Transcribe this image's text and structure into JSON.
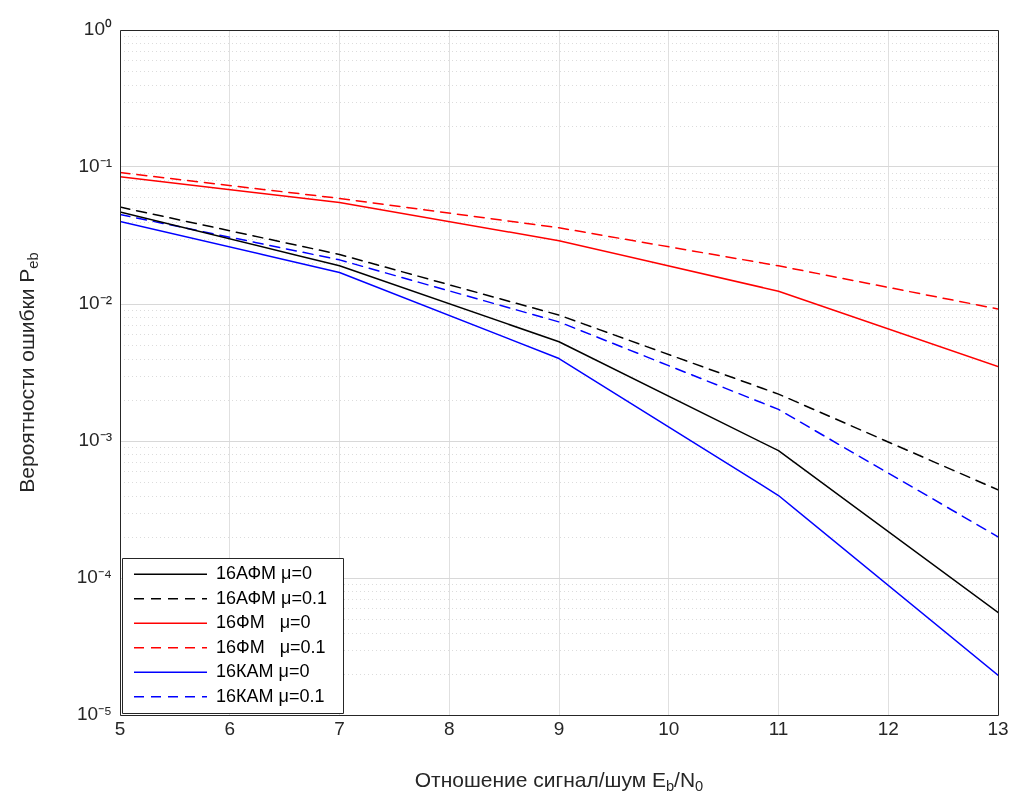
{
  "chart_data": {
    "type": "line",
    "xlabel": "Отношение сигнал/шум E$_{b}$/N$_{0}$",
    "ylabel": "Вероятности ошибки P$_{eb}$",
    "x": [
      5,
      7,
      9,
      11,
      13
    ],
    "series": [
      {
        "name": "16АФМ μ=0",
        "color": "#000000",
        "line_style": "solid",
        "values": [
          0.047,
          0.019,
          0.0053,
          0.00085,
          5.6e-05
        ]
      },
      {
        "name": "16АФМ μ=0.1",
        "color": "#000000",
        "line_style": "dashed",
        "values": [
          0.051,
          0.023,
          0.0083,
          0.0022,
          0.00044
        ]
      },
      {
        "name": "16ФМ   μ=0",
        "color": "#ff0000",
        "line_style": "solid",
        "values": [
          0.085,
          0.055,
          0.029,
          0.0124,
          0.0035
        ]
      },
      {
        "name": "16ФМ   μ=0.1",
        "color": "#ff0000",
        "line_style": "dashed",
        "values": [
          0.091,
          0.059,
          0.036,
          0.019,
          0.0092
        ]
      },
      {
        "name": "16КАМ μ=0",
        "color": "#0000ff",
        "line_style": "solid",
        "values": [
          0.04,
          0.017,
          0.004,
          0.0004,
          1.95e-05
        ]
      },
      {
        "name": "16КАМ μ=0.1",
        "color": "#0000ff",
        "line_style": "dashed",
        "values": [
          0.045,
          0.021,
          0.0074,
          0.0017,
          0.0002
        ]
      }
    ],
    "xlim": [
      5,
      13
    ],
    "xticks": [
      5,
      6,
      7,
      8,
      9,
      10,
      11,
      12,
      13
    ],
    "ylim": [
      1e-05,
      1
    ],
    "yticks": [
      {
        "value": 1e-05,
        "label": "10⁻⁵"
      },
      {
        "value": 0.0001,
        "label": "10⁻⁴"
      },
      {
        "value": 0.001,
        "label": "10⁻³"
      },
      {
        "value": 0.01,
        "label": "10⁻²"
      },
      {
        "value": 0.1,
        "label": "10⁻¹"
      },
      {
        "value": 1,
        "label": "10⁰"
      }
    ],
    "log": "y",
    "grid": true,
    "legend": "bottom left",
    "marker": "none"
  }
}
